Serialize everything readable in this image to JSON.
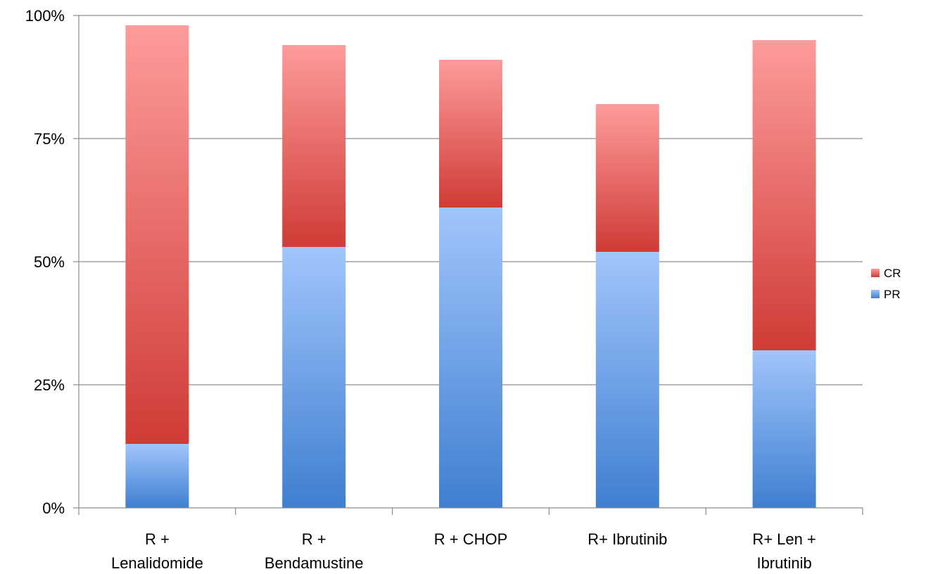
{
  "chart_data": {
    "type": "bar",
    "stacked": true,
    "categories": [
      [
        "R +",
        "Lenalidomide"
      ],
      [
        "R +",
        "Bendamustine"
      ],
      [
        "R + CHOP"
      ],
      [
        "R+ Ibrutinib"
      ],
      [
        "R+ Len +",
        "Ibrutinib"
      ]
    ],
    "series": [
      {
        "name": "PR",
        "values": [
          13,
          53,
          61,
          52,
          32
        ],
        "color": "#4a86d6",
        "color_light": "#9fc2fb"
      },
      {
        "name": "CR",
        "values": [
          85,
          41,
          30,
          30,
          63
        ],
        "color": "#d0403a",
        "color_light": "#fb9a99"
      }
    ],
    "ylim": [
      0,
      100
    ],
    "yticks": [
      0,
      25,
      50,
      75,
      100
    ],
    "ytick_labels": [
      "0%",
      "25%",
      "50%",
      "75%",
      "100%"
    ],
    "grid": true,
    "legend_position": "right",
    "legend_order": [
      "CR",
      "PR"
    ]
  }
}
